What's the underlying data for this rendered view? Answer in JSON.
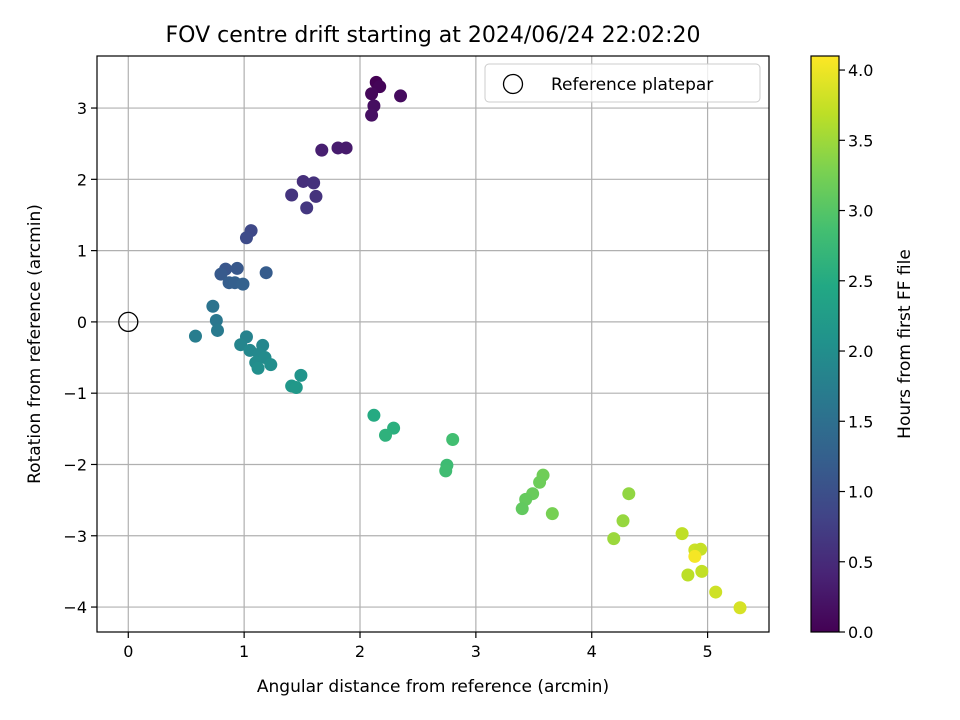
{
  "chart_data": {
    "type": "scatter",
    "title": "FOV centre drift starting at 2024/06/24 22:02:20",
    "xlabel": "Angular distance from reference (arcmin)",
    "ylabel": "Rotation from reference (arcmin)",
    "xlim": [
      -0.27,
      5.53
    ],
    "ylim": [
      -4.35,
      3.73
    ],
    "xticks": [
      0,
      1,
      2,
      3,
      4,
      5
    ],
    "xtick_labels": [
      "0",
      "1",
      "2",
      "3",
      "4",
      "5"
    ],
    "yticks": [
      -4,
      -3,
      -2,
      -1,
      0,
      1,
      2,
      3
    ],
    "ytick_labels": [
      "−4",
      "−3",
      "−2",
      "−1",
      "0",
      "1",
      "2",
      "3"
    ],
    "grid": true,
    "legend": {
      "placement": "upper-right",
      "entries": [
        "Reference platepar"
      ]
    },
    "reference_point": {
      "x": 0,
      "y": 0
    },
    "colorbar": {
      "label": "Hours from first FF file",
      "colormap": "viridis",
      "range": [
        0.0,
        4.1
      ],
      "ticks": [
        0.0,
        0.5,
        1.0,
        1.5,
        2.0,
        2.5,
        3.0,
        3.5,
        4.0
      ],
      "tick_labels": [
        "0.0",
        "0.5",
        "1.0",
        "1.5",
        "2.0",
        "2.5",
        "3.0",
        "3.5",
        "4.0"
      ]
    },
    "points": [
      {
        "x": 2.14,
        "y": 3.36,
        "hours": 0.0
      },
      {
        "x": 2.17,
        "y": 3.3,
        "hours": 0.05
      },
      {
        "x": 2.1,
        "y": 3.2,
        "hours": 0.08
      },
      {
        "x": 2.35,
        "y": 3.17,
        "hours": 0.12
      },
      {
        "x": 2.12,
        "y": 3.03,
        "hours": 0.15
      },
      {
        "x": 2.1,
        "y": 2.9,
        "hours": 0.18
      },
      {
        "x": 1.67,
        "y": 2.41,
        "hours": 0.35
      },
      {
        "x": 1.81,
        "y": 2.44,
        "hours": 0.32
      },
      {
        "x": 1.88,
        "y": 2.44,
        "hours": 0.3
      },
      {
        "x": 1.51,
        "y": 1.97,
        "hours": 0.55
      },
      {
        "x": 1.6,
        "y": 1.95,
        "hours": 0.58
      },
      {
        "x": 1.41,
        "y": 1.78,
        "hours": 0.62
      },
      {
        "x": 1.62,
        "y": 1.76,
        "hours": 0.6
      },
      {
        "x": 1.54,
        "y": 1.6,
        "hours": 0.65
      },
      {
        "x": 1.06,
        "y": 1.28,
        "hours": 0.9
      },
      {
        "x": 1.02,
        "y": 1.18,
        "hours": 0.93
      },
      {
        "x": 0.84,
        "y": 0.74,
        "hours": 1.1
      },
      {
        "x": 0.8,
        "y": 0.67,
        "hours": 1.15
      },
      {
        "x": 0.94,
        "y": 0.75,
        "hours": 1.12
      },
      {
        "x": 1.19,
        "y": 0.69,
        "hours": 1.18
      },
      {
        "x": 0.87,
        "y": 0.55,
        "hours": 1.22
      },
      {
        "x": 0.92,
        "y": 0.55,
        "hours": 1.25
      },
      {
        "x": 0.99,
        "y": 0.53,
        "hours": 1.28
      },
      {
        "x": 0.73,
        "y": 0.22,
        "hours": 1.55
      },
      {
        "x": 0.76,
        "y": 0.02,
        "hours": 1.62
      },
      {
        "x": 0.77,
        "y": -0.12,
        "hours": 1.68
      },
      {
        "x": 0.58,
        "y": -0.2,
        "hours": 1.72
      },
      {
        "x": 1.02,
        "y": -0.21,
        "hours": 1.8
      },
      {
        "x": 0.97,
        "y": -0.32,
        "hours": 1.85
      },
      {
        "x": 1.16,
        "y": -0.33,
        "hours": 1.88
      },
      {
        "x": 1.05,
        "y": -0.4,
        "hours": 1.9
      },
      {
        "x": 1.13,
        "y": -0.45,
        "hours": 1.92
      },
      {
        "x": 1.18,
        "y": -0.5,
        "hours": 1.95
      },
      {
        "x": 1.1,
        "y": -0.57,
        "hours": 1.97
      },
      {
        "x": 1.23,
        "y": -0.6,
        "hours": 2.0
      },
      {
        "x": 1.12,
        "y": -0.65,
        "hours": 2.02
      },
      {
        "x": 1.49,
        "y": -0.75,
        "hours": 2.1
      },
      {
        "x": 1.41,
        "y": -0.9,
        "hours": 2.15
      },
      {
        "x": 1.45,
        "y": -0.92,
        "hours": 2.18
      },
      {
        "x": 2.12,
        "y": -1.31,
        "hours": 2.5
      },
      {
        "x": 2.29,
        "y": -1.49,
        "hours": 2.58
      },
      {
        "x": 2.22,
        "y": -1.59,
        "hours": 2.62
      },
      {
        "x": 2.8,
        "y": -1.65,
        "hours": 2.85
      },
      {
        "x": 2.75,
        "y": -2.01,
        "hours": 2.8
      },
      {
        "x": 2.74,
        "y": -2.09,
        "hours": 2.82
      },
      {
        "x": 3.58,
        "y": -2.15,
        "hours": 3.2
      },
      {
        "x": 3.55,
        "y": -2.25,
        "hours": 3.18
      },
      {
        "x": 3.49,
        "y": -2.41,
        "hours": 3.15
      },
      {
        "x": 3.43,
        "y": -2.49,
        "hours": 3.12
      },
      {
        "x": 3.4,
        "y": -2.62,
        "hours": 3.1
      },
      {
        "x": 3.66,
        "y": -2.69,
        "hours": 3.25
      },
      {
        "x": 4.32,
        "y": -2.41,
        "hours": 3.42
      },
      {
        "x": 4.27,
        "y": -2.79,
        "hours": 3.45
      },
      {
        "x": 4.19,
        "y": -3.04,
        "hours": 3.48
      },
      {
        "x": 4.78,
        "y": -2.97,
        "hours": 3.7
      },
      {
        "x": 4.89,
        "y": -3.2,
        "hours": 3.78
      },
      {
        "x": 4.94,
        "y": -3.19,
        "hours": 3.75
      },
      {
        "x": 4.89,
        "y": -3.29,
        "hours": 4.05
      },
      {
        "x": 4.95,
        "y": -3.5,
        "hours": 3.72
      },
      {
        "x": 4.83,
        "y": -3.55,
        "hours": 3.68
      },
      {
        "x": 5.07,
        "y": -3.79,
        "hours": 3.8
      },
      {
        "x": 5.28,
        "y": -4.01,
        "hours": 3.85
      }
    ]
  }
}
